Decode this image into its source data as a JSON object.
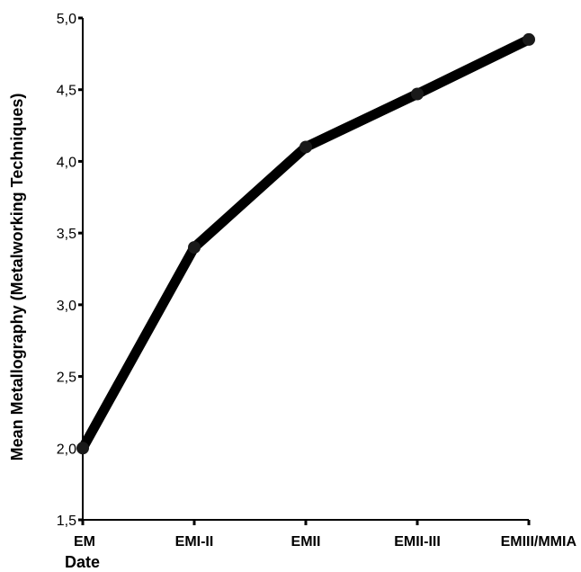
{
  "chart_data": {
    "type": "line",
    "title": "",
    "xlabel": "Date",
    "ylabel": "Mean Metallography (Metalworking Techniques)",
    "categories": [
      "EM",
      "EMI-II",
      "EMII",
      "EMII-III",
      "EMIII/MMIA"
    ],
    "series": [
      {
        "values": [
          2.0,
          3.4,
          4.1,
          4.47,
          4.85
        ]
      }
    ],
    "ylim": [
      1.5,
      5.0
    ],
    "y_ticks": [
      "1,5",
      "2,0",
      "2,5",
      "3,0",
      "3,5",
      "4,0",
      "4,5",
      "5,0"
    ],
    "y_tick_values": [
      1.5,
      2.0,
      2.5,
      3.0,
      3.5,
      4.0,
      4.5,
      5.0
    ],
    "grid": false,
    "legend": "none",
    "line_color": "#000000",
    "marker_color": "#1a1a1a"
  }
}
